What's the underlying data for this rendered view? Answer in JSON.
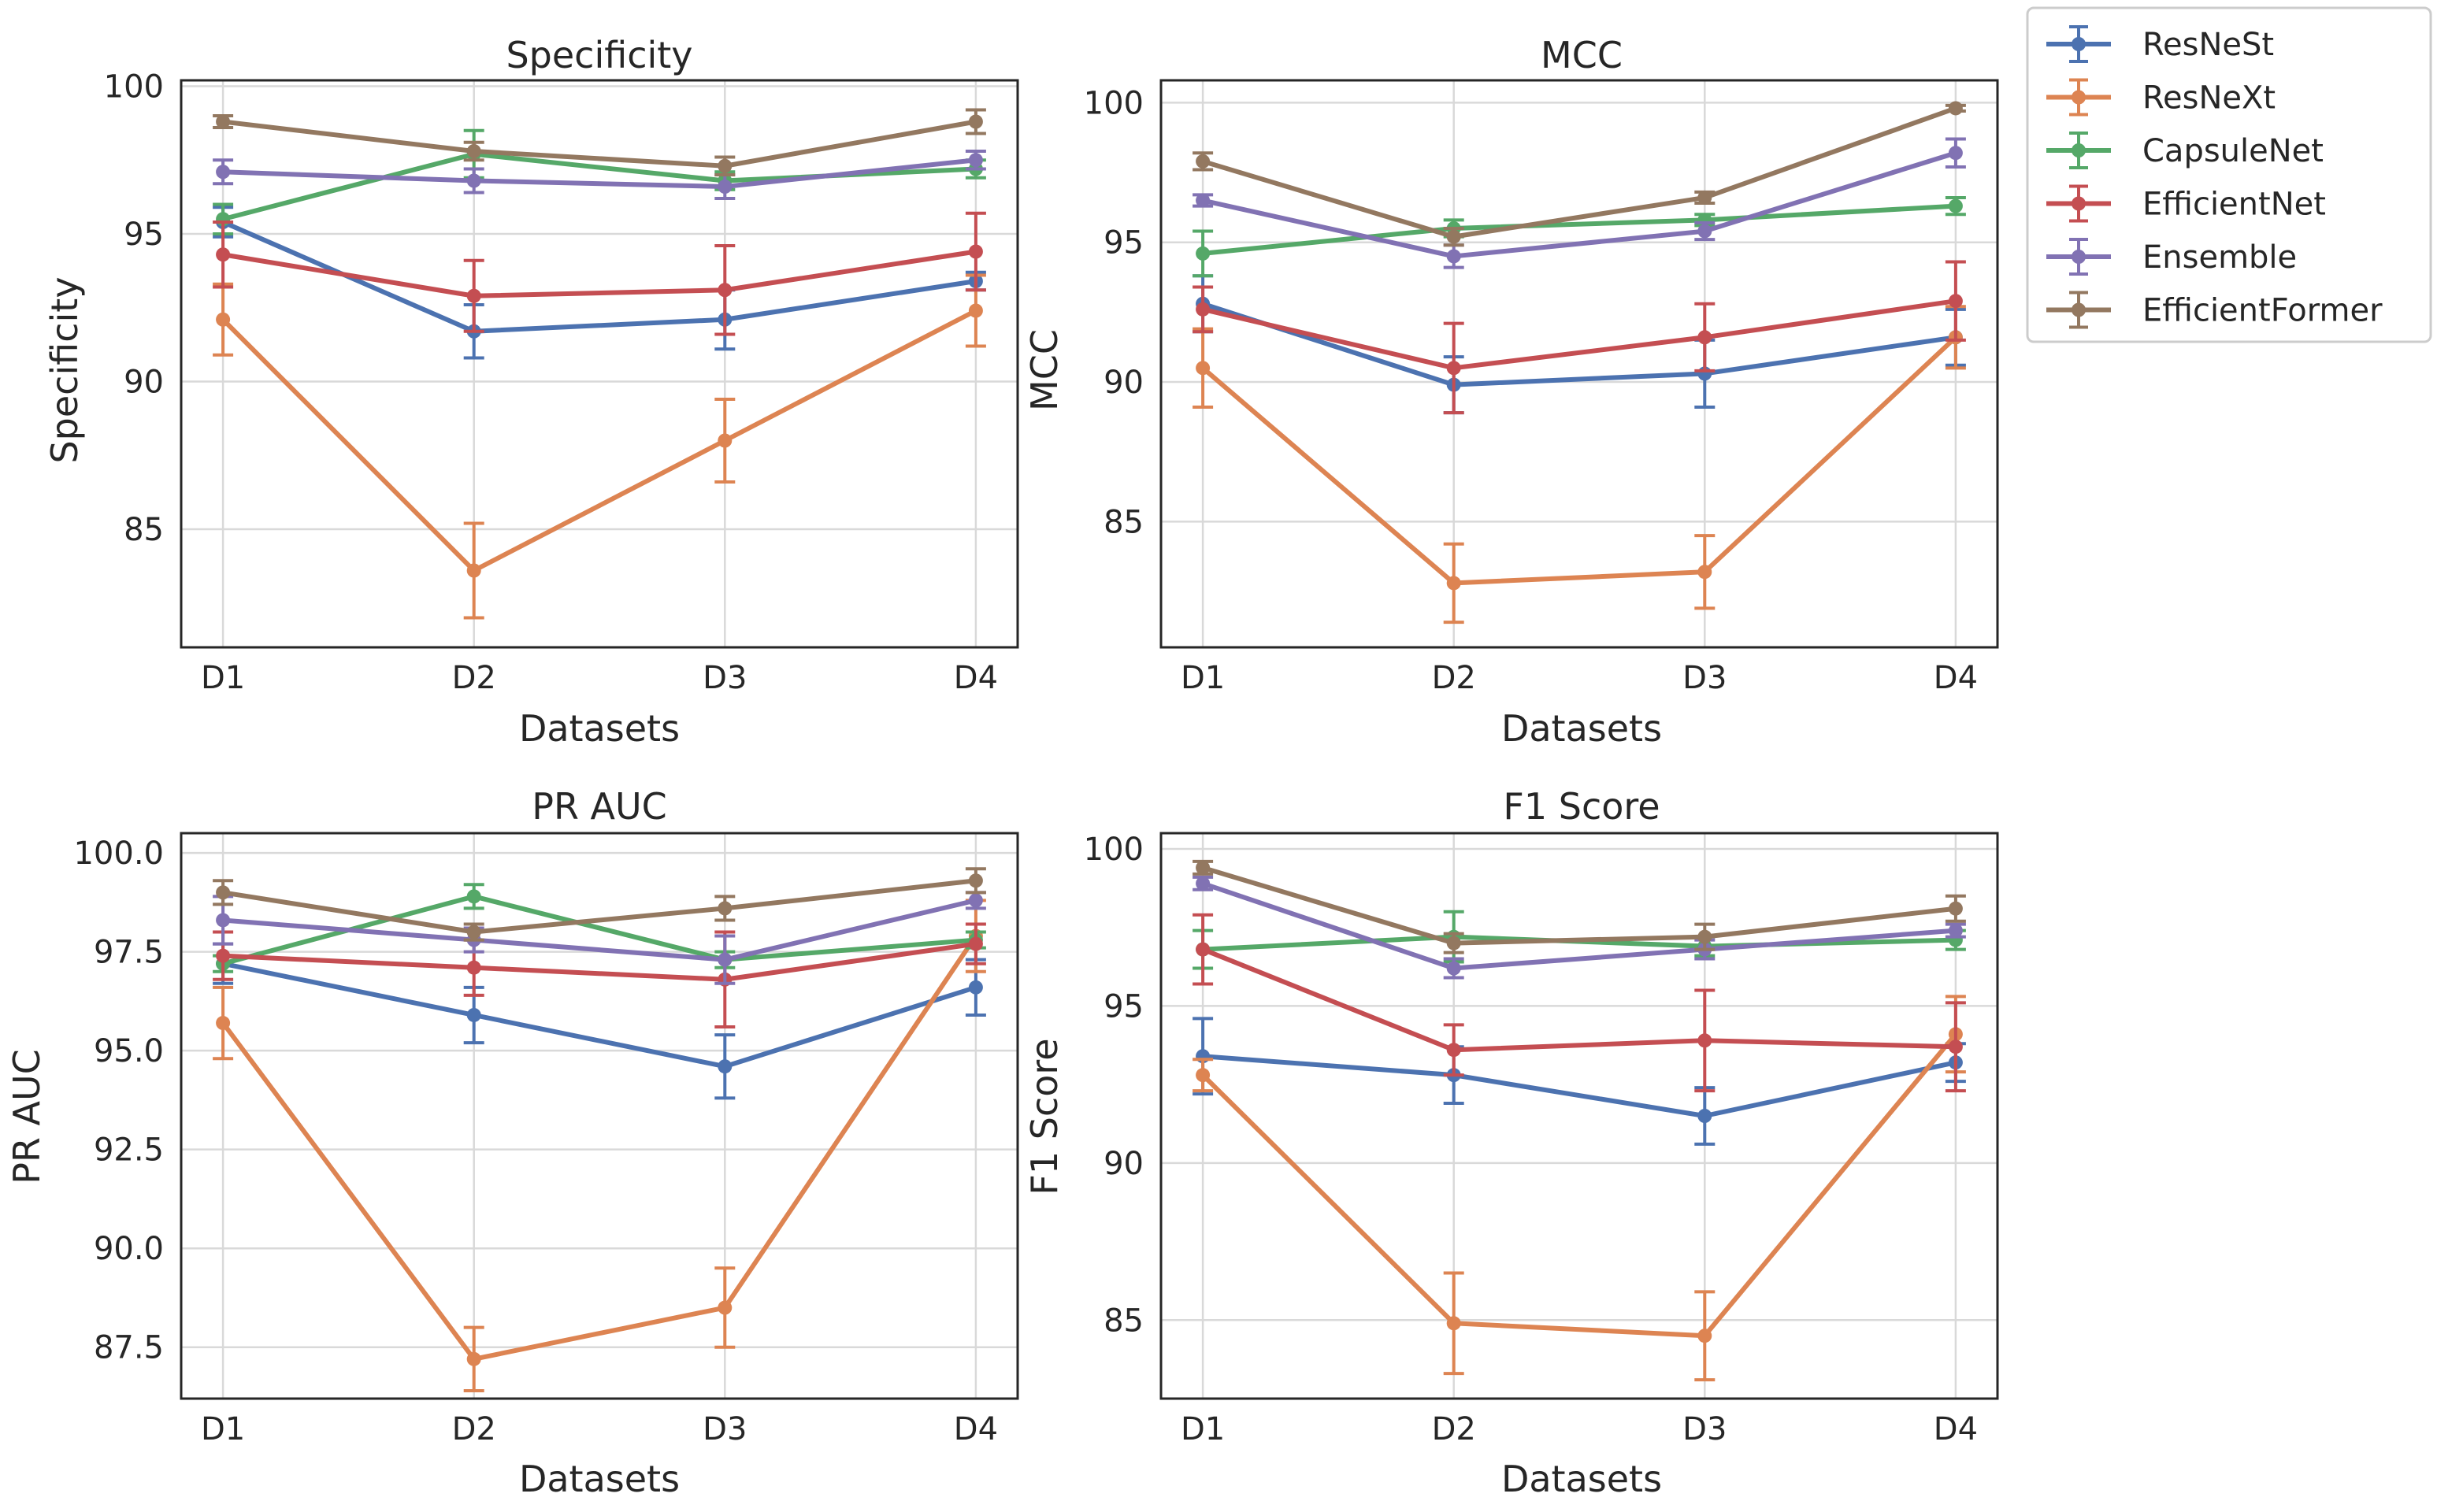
{
  "legend": {
    "entries": [
      {
        "name": "ResNeSt",
        "color": "#4c72b0"
      },
      {
        "name": "ResNeXt",
        "color": "#dd8452"
      },
      {
        "name": "CapsuleNet",
        "color": "#55a868"
      },
      {
        "name": "EfficientNet",
        "color": "#c44e52"
      },
      {
        "name": "Ensemble",
        "color": "#8172b3"
      },
      {
        "name": "EfficientFormer",
        "color": "#937860"
      }
    ]
  },
  "chart_data": [
    {
      "type": "line",
      "title": "Specificity",
      "xlabel": "Datasets",
      "ylabel": "Specificity",
      "categories": [
        "D1",
        "D2",
        "D3",
        "D4"
      ],
      "ylim": [
        81,
        100.2
      ],
      "yticks": [
        85,
        90,
        95,
        100
      ],
      "ytick_labels": [
        "85",
        "90",
        "95",
        "100"
      ],
      "series": [
        {
          "name": "ResNeSt",
          "values": [
            95.4,
            91.7,
            92.1,
            93.4
          ],
          "errors": [
            0.5,
            0.9,
            1.0,
            0.3
          ]
        },
        {
          "name": "ResNeXt",
          "values": [
            92.1,
            83.6,
            88.0,
            92.4
          ],
          "errors": [
            1.2,
            1.6,
            1.4,
            1.2
          ]
        },
        {
          "name": "CapsuleNet",
          "values": [
            95.5,
            97.7,
            96.8,
            97.2
          ],
          "errors": [
            0.5,
            0.8,
            0.3,
            0.3
          ]
        },
        {
          "name": "EfficientNet",
          "values": [
            94.3,
            92.9,
            93.1,
            94.4
          ],
          "errors": [
            1.1,
            1.2,
            1.5,
            1.3
          ]
        },
        {
          "name": "Ensemble",
          "values": [
            97.1,
            96.8,
            96.6,
            97.5
          ],
          "errors": [
            0.4,
            0.4,
            0.4,
            0.3
          ]
        },
        {
          "name": "EfficientFormer",
          "values": [
            98.8,
            97.8,
            97.3,
            98.8
          ],
          "errors": [
            0.2,
            0.3,
            0.3,
            0.4
          ]
        }
      ]
    },
    {
      "type": "line",
      "title": "MCC",
      "xlabel": "Datasets",
      "ylabel": "MCC",
      "categories": [
        "D1",
        "D2",
        "D3",
        "D4"
      ],
      "ylim": [
        80.5,
        100.8
      ],
      "yticks": [
        85,
        90,
        95,
        100
      ],
      "ytick_labels": [
        "85",
        "90",
        "95",
        "100"
      ],
      "series": [
        {
          "name": "ResNeSt",
          "values": [
            92.8,
            89.9,
            90.3,
            91.6
          ],
          "errors": [
            1.0,
            1.0,
            1.2,
            1.0
          ]
        },
        {
          "name": "ResNeXt",
          "values": [
            90.5,
            82.8,
            83.2,
            91.6
          ],
          "errors": [
            1.4,
            1.4,
            1.3,
            1.1
          ]
        },
        {
          "name": "CapsuleNet",
          "values": [
            94.6,
            95.5,
            95.8,
            96.3
          ],
          "errors": [
            0.8,
            0.3,
            0.2,
            0.3
          ]
        },
        {
          "name": "EfficientNet",
          "values": [
            92.6,
            90.5,
            91.6,
            92.9
          ],
          "errors": [
            0.8,
            1.6,
            1.2,
            1.4
          ]
        },
        {
          "name": "Ensemble",
          "values": [
            96.5,
            94.5,
            95.4,
            98.2
          ],
          "errors": [
            0.2,
            0.4,
            0.3,
            0.5
          ]
        },
        {
          "name": "EfficientFormer",
          "values": [
            97.9,
            95.2,
            96.6,
            99.8
          ],
          "errors": [
            0.3,
            0.3,
            0.2,
            0.1
          ]
        }
      ]
    },
    {
      "type": "line",
      "title": "PR AUC",
      "xlabel": "Datasets",
      "ylabel": "PR AUC",
      "categories": [
        "D1",
        "D2",
        "D3",
        "D4"
      ],
      "ylim": [
        86.2,
        100.5
      ],
      "yticks": [
        87.5,
        90.0,
        92.5,
        95.0,
        97.5,
        100.0
      ],
      "ytick_labels": [
        "87.5",
        "90.0",
        "92.5",
        "95.0",
        "97.5",
        "100.0"
      ],
      "series": [
        {
          "name": "ResNeSt",
          "values": [
            97.2,
            95.9,
            94.6,
            96.6
          ],
          "errors": [
            0.5,
            0.7,
            0.8,
            0.7
          ]
        },
        {
          "name": "ResNeXt",
          "values": [
            95.7,
            87.2,
            88.5,
            97.9
          ],
          "errors": [
            0.9,
            0.8,
            1.0,
            0.9
          ]
        },
        {
          "name": "CapsuleNet",
          "values": [
            97.2,
            98.9,
            97.3,
            97.8
          ],
          "errors": [
            0.2,
            0.3,
            0.2,
            0.2
          ]
        },
        {
          "name": "EfficientNet",
          "values": [
            97.4,
            97.1,
            96.8,
            97.7
          ],
          "errors": [
            0.6,
            0.7,
            1.2,
            0.5
          ]
        },
        {
          "name": "Ensemble",
          "values": [
            98.3,
            97.8,
            97.3,
            98.8
          ],
          "errors": [
            0.6,
            0.3,
            0.6,
            0.2
          ]
        },
        {
          "name": "EfficientFormer",
          "values": [
            99.0,
            98.0,
            98.6,
            99.3
          ],
          "errors": [
            0.3,
            0.2,
            0.3,
            0.3
          ]
        }
      ]
    },
    {
      "type": "line",
      "title": "F1 Score",
      "xlabel": "Datasets",
      "ylabel": "F1 Score",
      "categories": [
        "D1",
        "D2",
        "D3",
        "D4"
      ],
      "ylim": [
        82.5,
        100.5
      ],
      "yticks": [
        85,
        90,
        95,
        100
      ],
      "ytick_labels": [
        "85",
        "90",
        "95",
        "100"
      ],
      "series": [
        {
          "name": "ResNeSt",
          "values": [
            93.4,
            92.8,
            91.5,
            93.2
          ],
          "errors": [
            1.2,
            0.9,
            0.9,
            0.6
          ]
        },
        {
          "name": "ResNeXt",
          "values": [
            92.8,
            84.9,
            84.5,
            94.1
          ],
          "errors": [
            0.5,
            1.6,
            1.4,
            1.2
          ]
        },
        {
          "name": "CapsuleNet",
          "values": [
            96.8,
            97.2,
            96.9,
            97.1
          ],
          "errors": [
            0.6,
            0.8,
            0.3,
            0.3
          ]
        },
        {
          "name": "EfficientNet",
          "values": [
            96.8,
            93.6,
            93.9,
            93.7
          ],
          "errors": [
            1.1,
            0.8,
            1.6,
            1.4
          ]
        },
        {
          "name": "Ensemble",
          "values": [
            98.9,
            96.2,
            96.8,
            97.4
          ],
          "errors": [
            0.2,
            0.3,
            0.3,
            0.2
          ]
        },
        {
          "name": "EfficientFormer",
          "values": [
            99.4,
            97.0,
            97.2,
            98.1
          ],
          "errors": [
            0.2,
            0.3,
            0.4,
            0.4
          ]
        }
      ]
    }
  ]
}
